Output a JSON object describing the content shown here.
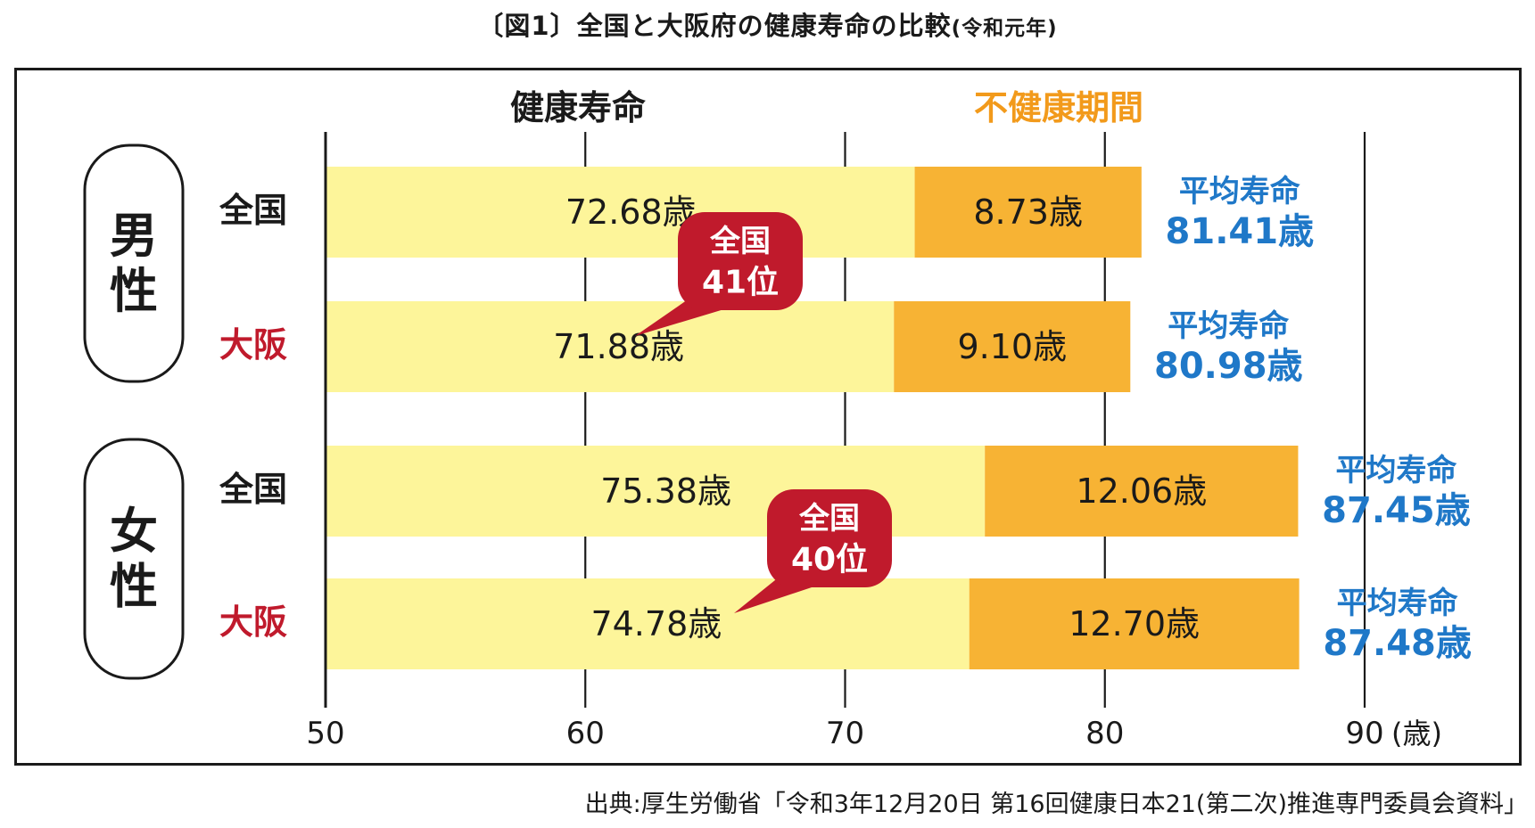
{
  "title": {
    "prefix": "〔図1〕",
    "main": "全国と大阪府の健康寿命の比較",
    "suffix": "(令和元年)"
  },
  "source": "出典:厚生労働省「令和3年12月20日 第16回健康日本21(第二次)推進専門委員会資料」",
  "colors": {
    "healthy": "#fdf59a",
    "unhealthy": "#f7b334",
    "life_text": "#1f78c8",
    "osaka_text": "#c01a2c",
    "badge": "#c01a2c",
    "unhealthy_label": "#f29a1b"
  },
  "chart_data": {
    "type": "bar",
    "orientation": "horizontal",
    "stacked": true,
    "legend": [
      "健康寿命",
      "不健康期間"
    ],
    "xlim": [
      50,
      90
    ],
    "x_ticks": [
      "50",
      "60",
      "70",
      "80",
      "90"
    ],
    "x_unit": "(歳)",
    "groups": [
      {
        "name": "男性",
        "rows": [
          {
            "label": "全国",
            "healthy": 72.68,
            "healthy_label": "72.68歳",
            "unhealthy": 8.73,
            "unhealthy_label": "8.73歳",
            "life_title": "平均寿命",
            "life_label": "81.41歳",
            "osaka": false
          },
          {
            "label": "大阪",
            "healthy": 71.88,
            "healthy_label": "71.88歳",
            "unhealthy": 9.1,
            "unhealthy_label": "9.10歳",
            "life_title": "平均寿命",
            "life_label": "80.98歳",
            "osaka": true,
            "badge": [
              "全国",
              "41位"
            ]
          }
        ]
      },
      {
        "name": "女性",
        "rows": [
          {
            "label": "全国",
            "healthy": 75.38,
            "healthy_label": "75.38歳",
            "unhealthy": 12.06,
            "unhealthy_label": "12.06歳",
            "life_title": "平均寿命",
            "life_label": "87.45歳",
            "osaka": false
          },
          {
            "label": "大阪",
            "healthy": 74.78,
            "healthy_label": "74.78歳",
            "unhealthy": 12.7,
            "unhealthy_label": "12.70歳",
            "life_title": "平均寿命",
            "life_label": "87.48歳",
            "osaka": true,
            "badge": [
              "全国",
              "40位"
            ]
          }
        ]
      }
    ]
  }
}
